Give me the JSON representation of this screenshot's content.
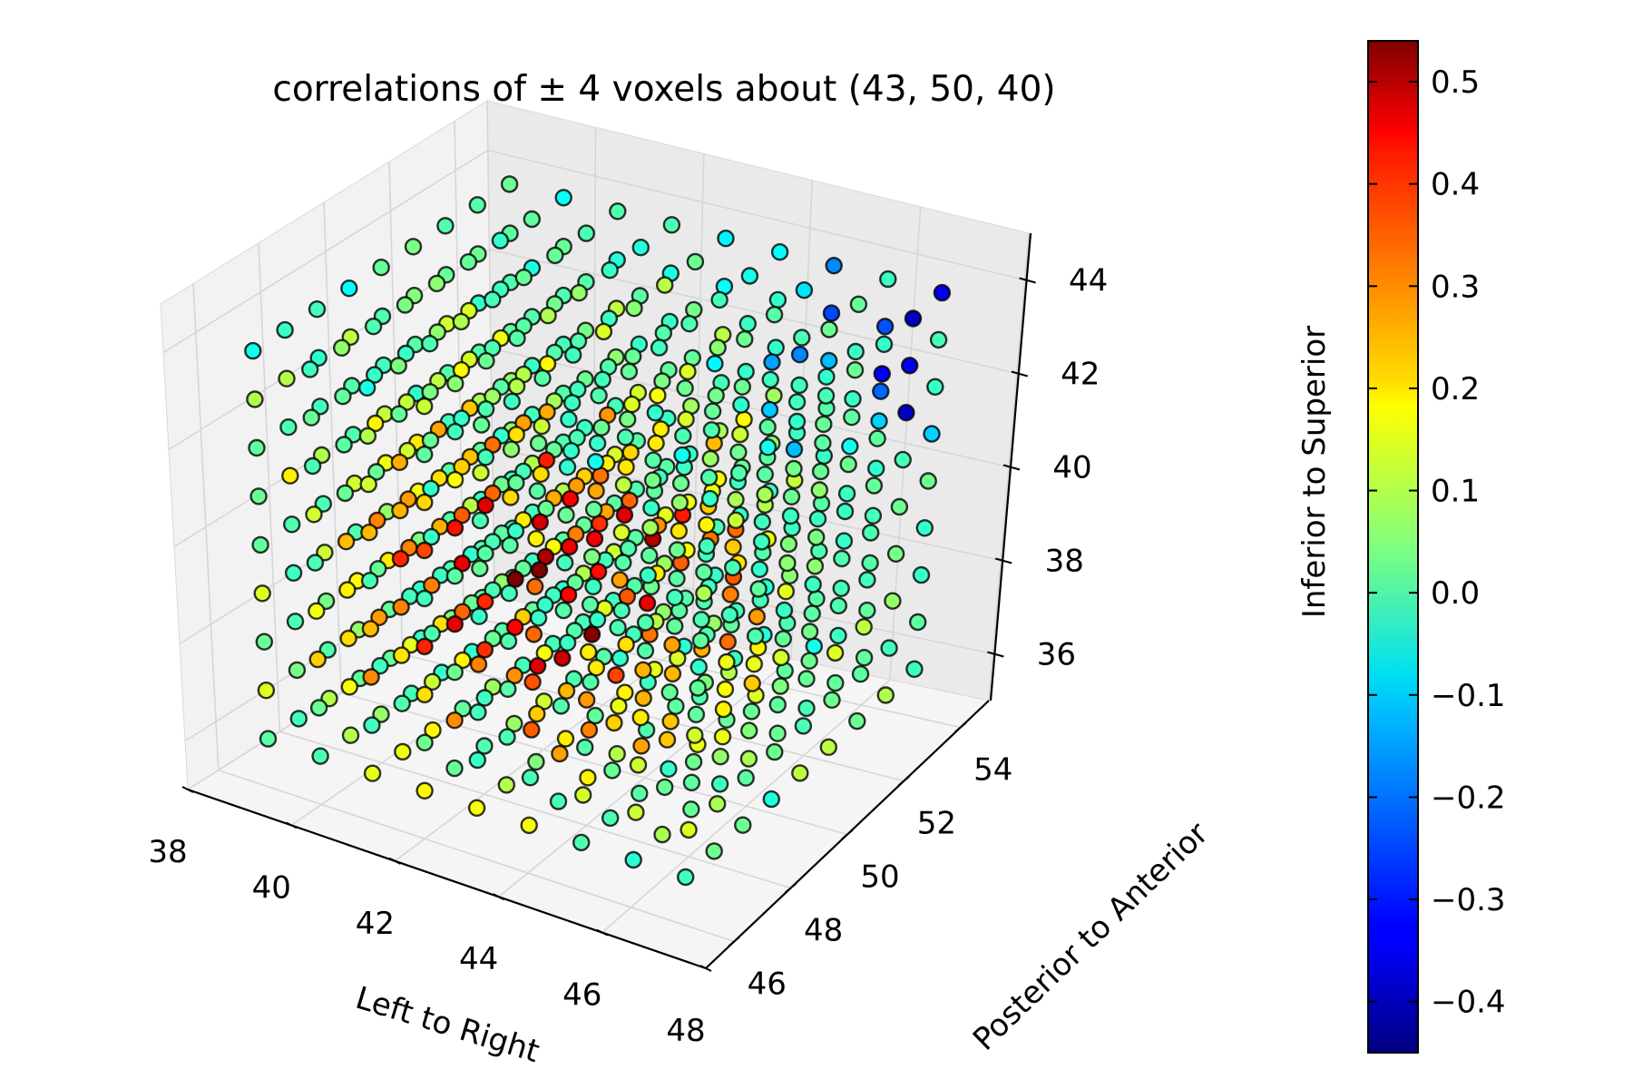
{
  "chart_data": {
    "type": "scatter",
    "title": "correlations of ± 4 voxels about (43, 50, 40)",
    "xlabel": "Left to Right",
    "ylabel": "Posterior to Anterior",
    "zlabel": "Inferior to Superior",
    "center": [
      43,
      50,
      40
    ],
    "radius": 4,
    "xlim": [
      38,
      48
    ],
    "ylim": [
      45,
      55
    ],
    "zlim": [
      35,
      45
    ],
    "x_ticks": [
      38,
      40,
      42,
      44,
      46,
      48
    ],
    "y_ticks": [
      46,
      48,
      50,
      52,
      54
    ],
    "z_ticks": [
      36,
      38,
      40,
      42,
      44
    ],
    "grid": true,
    "colormap": "jet",
    "marker_edge_color": "#000000",
    "colorbar": {
      "min": -0.45,
      "max": 0.54,
      "ticks": [
        0.5,
        0.4,
        0.3,
        0.2,
        0.1,
        0.0,
        -0.1,
        -0.2,
        -0.3,
        -0.4
      ],
      "tick_labels": [
        "0.5",
        "0.4",
        "0.3",
        "0.2",
        "0.1",
        "0.0",
        "−0.1",
        "−0.2",
        "−0.3",
        "−0.4"
      ]
    },
    "points": "9 × 9 × 9 voxel grid, x ∈ 39..47, y ∈ 46..54, z ∈ 36..44, colored by correlation value"
  }
}
